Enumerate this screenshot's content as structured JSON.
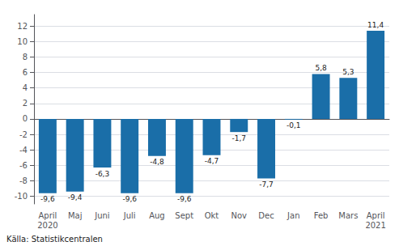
{
  "chart_data": {
    "type": "bar",
    "categories": [
      "April\n2020",
      "Maj",
      "Juni",
      "Juli",
      "Aug",
      "Sept",
      "Okt",
      "Nov",
      "Dec",
      "Jan",
      "Feb",
      "Mars",
      "April\n2021"
    ],
    "values": [
      -9.6,
      -9.4,
      -6.3,
      -9.6,
      -4.8,
      -9.6,
      -4.7,
      -1.7,
      -7.7,
      -0.1,
      5.8,
      5.3,
      11.4
    ],
    "value_labels": [
      "-9,6",
      "-9,4",
      "-6,3",
      "-9,6",
      "-4,8",
      "-9,6",
      "-4,7",
      "-1,7",
      "-7,7",
      "-0,1",
      "5,8",
      "5,3",
      "11,4"
    ],
    "data_labels": true,
    "color": "#1a6ea8",
    "ylim": [
      -11,
      13.5
    ],
    "yticks": [
      -10,
      -8,
      -6,
      -4,
      -2,
      0,
      2,
      4,
      6,
      8,
      10,
      12
    ],
    "grid": true,
    "annotation": "Källa: Statistikcentralen"
  }
}
